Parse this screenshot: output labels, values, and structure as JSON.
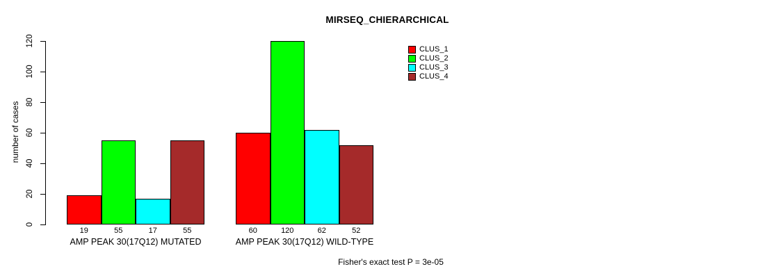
{
  "chart_data": {
    "type": "bar",
    "title": "MIRSEQ_CHIERARCHICAL",
    "xlabel": "",
    "ylabel": "number of cases",
    "ylim": [
      0,
      120
    ],
    "yticks": [
      0,
      20,
      40,
      60,
      80,
      100,
      120
    ],
    "grid": false,
    "legend_position": "top-right",
    "categories": [
      "AMP PEAK 30(17Q12) MUTATED",
      "AMP PEAK 30(17Q12) WILD-TYPE"
    ],
    "series": [
      {
        "name": "CLUS_1",
        "color": "#ff0000",
        "values": [
          19,
          60
        ]
      },
      {
        "name": "CLUS_2",
        "color": "#00ff00",
        "values": [
          55,
          120
        ]
      },
      {
        "name": "CLUS_3",
        "color": "#00ffff",
        "values": [
          17,
          62
        ]
      },
      {
        "name": "CLUS_4",
        "color": "#a52a2a",
        "values": [
          55,
          52
        ]
      }
    ],
    "bar_value_labels_shown": true,
    "annotation": "Fisher's exact test P = 3e-05"
  }
}
